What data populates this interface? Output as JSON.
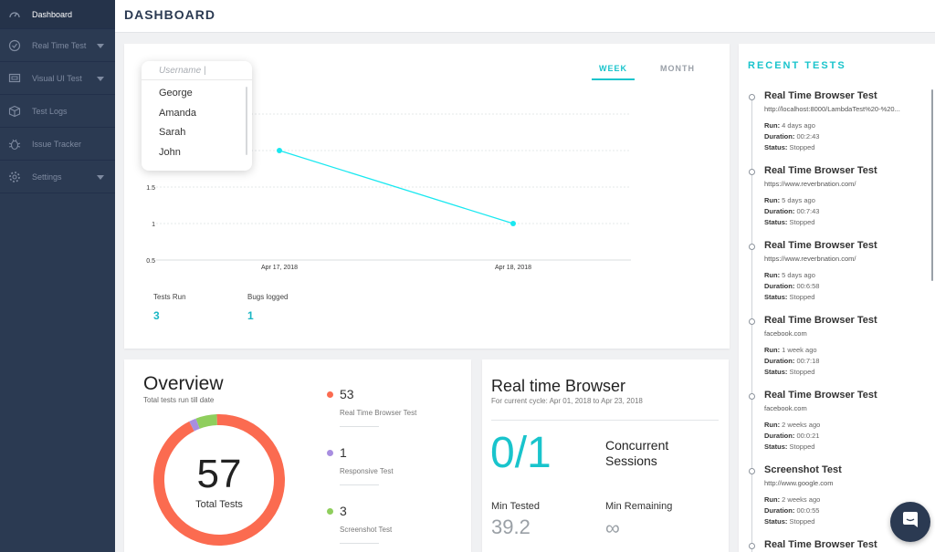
{
  "sidebar": {
    "items": [
      {
        "label": "Dashboard",
        "icon": "gauge-icon"
      },
      {
        "label": "Real Time Test",
        "icon": "clock-icon"
      },
      {
        "label": "Visual UI Test",
        "icon": "monitor-icon"
      },
      {
        "label": "Test Logs",
        "icon": "cube-icon"
      },
      {
        "label": "Issue Tracker",
        "icon": "bug-icon"
      },
      {
        "label": "Settings",
        "icon": "gear-icon"
      }
    ]
  },
  "header": {
    "title": "DASHBOARD"
  },
  "chart": {
    "tabs": [
      "WEEK",
      "MONTH"
    ],
    "active_tab": "WEEK",
    "username_placeholder": "Username |",
    "users": [
      "George",
      "Amanda",
      "Sarah",
      "John"
    ],
    "stats": [
      {
        "label": "Tests Run",
        "value": "3"
      },
      {
        "label": "Bugs logged",
        "value": "1"
      }
    ]
  },
  "chart_data": {
    "type": "line",
    "x": [
      "Apr 17, 2018",
      "Apr 18, 2018"
    ],
    "series": [
      {
        "values": [
          2,
          1
        ]
      }
    ],
    "y_ticks": [
      "0.5",
      "1",
      "1.5"
    ],
    "ylim": [
      0.5,
      2.5
    ],
    "grid": true,
    "color": "#19e8f0"
  },
  "overview": {
    "title": "Overview",
    "subtitle": "Total tests run till date",
    "total": "57",
    "total_label": "Total Tests",
    "items": [
      {
        "value": 53,
        "label": "Real Time Browser Test",
        "color": "#fb6b50"
      },
      {
        "value": 1,
        "label": "Responsive Test",
        "color": "#a88ee0"
      },
      {
        "value": 3,
        "label": "Screenshot Test",
        "color": "#8fce5d"
      }
    ]
  },
  "realtime": {
    "title": "Real time Browser",
    "subtitle": "For current cycle: Apr 01, 2018 to Apr 23, 2018",
    "sessions": "0/1",
    "sessions_label": "Concurrent Sessions",
    "min_tested_label": "Min Tested",
    "min_tested": "39.2",
    "min_remaining_label": "Min Remaining",
    "min_remaining": "∞"
  },
  "recent": {
    "title": "RECENT TESTS",
    "run_label": "Run:",
    "duration_label": "Duration:",
    "status_label": "Status:",
    "tests": [
      {
        "name": "Real Time Browser Test",
        "url": "http://localhost:8000/LambdaTest%20-%20...",
        "run": "4 days ago",
        "duration": "00:2:43",
        "status": "Stopped"
      },
      {
        "name": "Real Time Browser Test",
        "url": "https://www.reverbnation.com/",
        "run": "5 days ago",
        "duration": "00:7:43",
        "status": "Stopped"
      },
      {
        "name": "Real Time Browser Test",
        "url": "https://www.reverbnation.com/",
        "run": "5 days ago",
        "duration": "00:6:58",
        "status": "Stopped"
      },
      {
        "name": "Real Time Browser Test",
        "url": "facebook.com",
        "run": "1 week ago",
        "duration": "00:7:18",
        "status": "Stopped"
      },
      {
        "name": "Real Time Browser Test",
        "url": "facebook.com",
        "run": "2 weeks ago",
        "duration": "00:0:21",
        "status": "Stopped"
      },
      {
        "name": "Screenshot Test",
        "url": "http://www.google.com",
        "run": "2 weeks ago",
        "duration": "00:0:55",
        "status": "Stopped"
      },
      {
        "name": "Real Time Browser Test",
        "url": "",
        "run": "",
        "duration": "",
        "status": ""
      }
    ]
  },
  "chat": {
    "icon": "chat-icon"
  }
}
